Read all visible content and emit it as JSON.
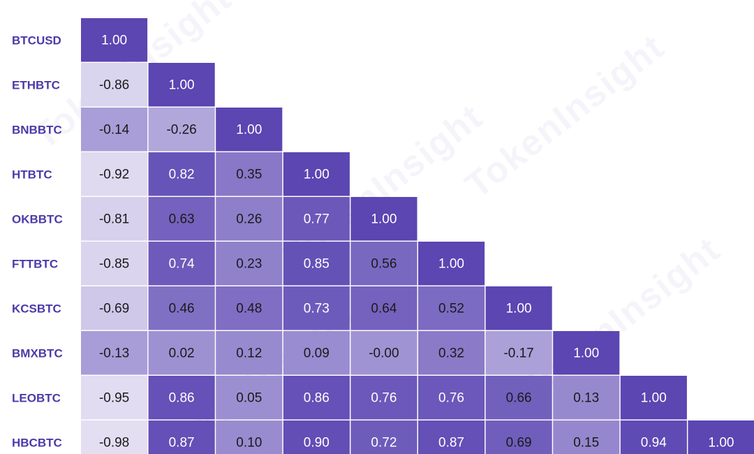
{
  "watermark": "TokenInsight",
  "colors": {
    "label": "#4b3aa8",
    "text_light": "#ffffff",
    "text_dark": "#1a1a1a",
    "low": "#e4e0f3",
    "high": "#5b46b2"
  },
  "chart_data": {
    "type": "heatmap",
    "title": "",
    "subtitle": "",
    "layout": "lower-triangle",
    "labels": [
      "BTCUSD",
      "ETHBTC",
      "BNBBTC",
      "HTBTC",
      "OKBBTC",
      "FTTBTC",
      "KCSBTC",
      "BMXBTC",
      "LEOBTC",
      "HBCBTC"
    ],
    "values": [
      [
        "1.00"
      ],
      [
        "-0.86",
        "1.00"
      ],
      [
        "-0.14",
        "-0.26",
        "1.00"
      ],
      [
        "-0.92",
        "0.82",
        "0.35",
        "1.00"
      ],
      [
        "-0.81",
        "0.63",
        "0.26",
        "0.77",
        "1.00"
      ],
      [
        "-0.85",
        "0.74",
        "0.23",
        "0.85",
        "0.56",
        "1.00"
      ],
      [
        "-0.69",
        "0.46",
        "0.48",
        "0.73",
        "0.64",
        "0.52",
        "1.00"
      ],
      [
        "-0.13",
        "0.02",
        "0.12",
        "0.09",
        "-0.00",
        "0.32",
        "-0.17",
        "1.00"
      ],
      [
        "-0.95",
        "0.86",
        "0.05",
        "0.86",
        "0.76",
        "0.76",
        "0.66",
        "0.13",
        "1.00"
      ],
      [
        "-0.98",
        "0.87",
        "0.10",
        "0.90",
        "0.72",
        "0.87",
        "0.69",
        "0.15",
        "0.94",
        "1.00"
      ]
    ]
  }
}
